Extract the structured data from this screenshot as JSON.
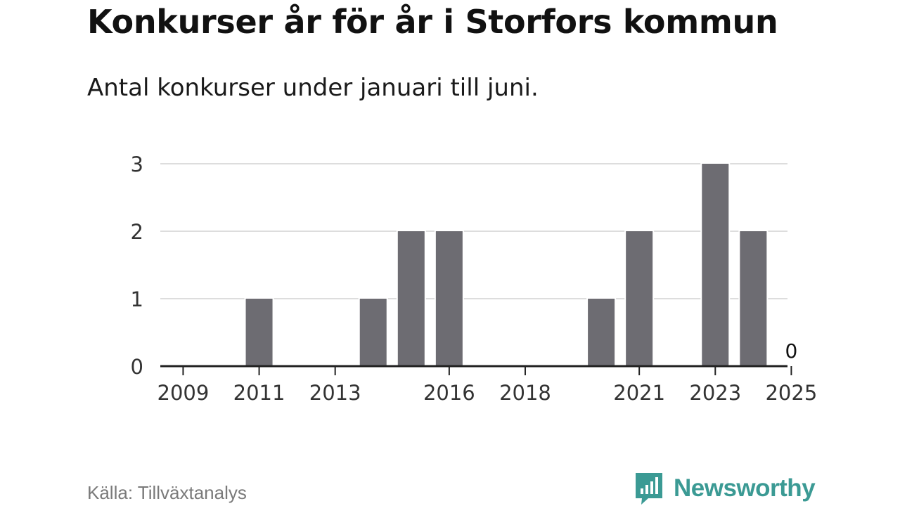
{
  "title": "Konkurser år för år i Storfors kommun",
  "subtitle": "Antal konkurser under januari till juni.",
  "source": "Källa: Tillväxtanalys",
  "brand": {
    "name": "Newsworthy",
    "color": "#3b9a94",
    "icon": "newsworthy-logo-icon"
  },
  "colors": {
    "bar": "#6d6c72",
    "grid": "#dddddd",
    "axis": "#222222",
    "text": "#333333"
  },
  "chart_data": {
    "type": "bar",
    "categories": [
      "2009",
      "2010",
      "2011",
      "2012",
      "2013",
      "2014",
      "2015",
      "2016",
      "2017",
      "2018",
      "2019",
      "2020",
      "2021",
      "2022",
      "2023",
      "2024",
      "2025"
    ],
    "values": [
      0,
      0,
      1,
      0,
      0,
      1,
      2,
      2,
      0,
      0,
      0,
      1,
      2,
      0,
      3,
      2,
      0
    ],
    "tick_labels": [
      "2009",
      "2011",
      "2013",
      "2016",
      "2018",
      "2021",
      "2023",
      "2025"
    ],
    "yticks": [
      0,
      1,
      2,
      3
    ],
    "ylim": [
      0,
      3
    ],
    "annotations": [
      {
        "x": "2025",
        "text": "0"
      }
    ],
    "xlabel": "",
    "ylabel": "",
    "grid": true
  }
}
